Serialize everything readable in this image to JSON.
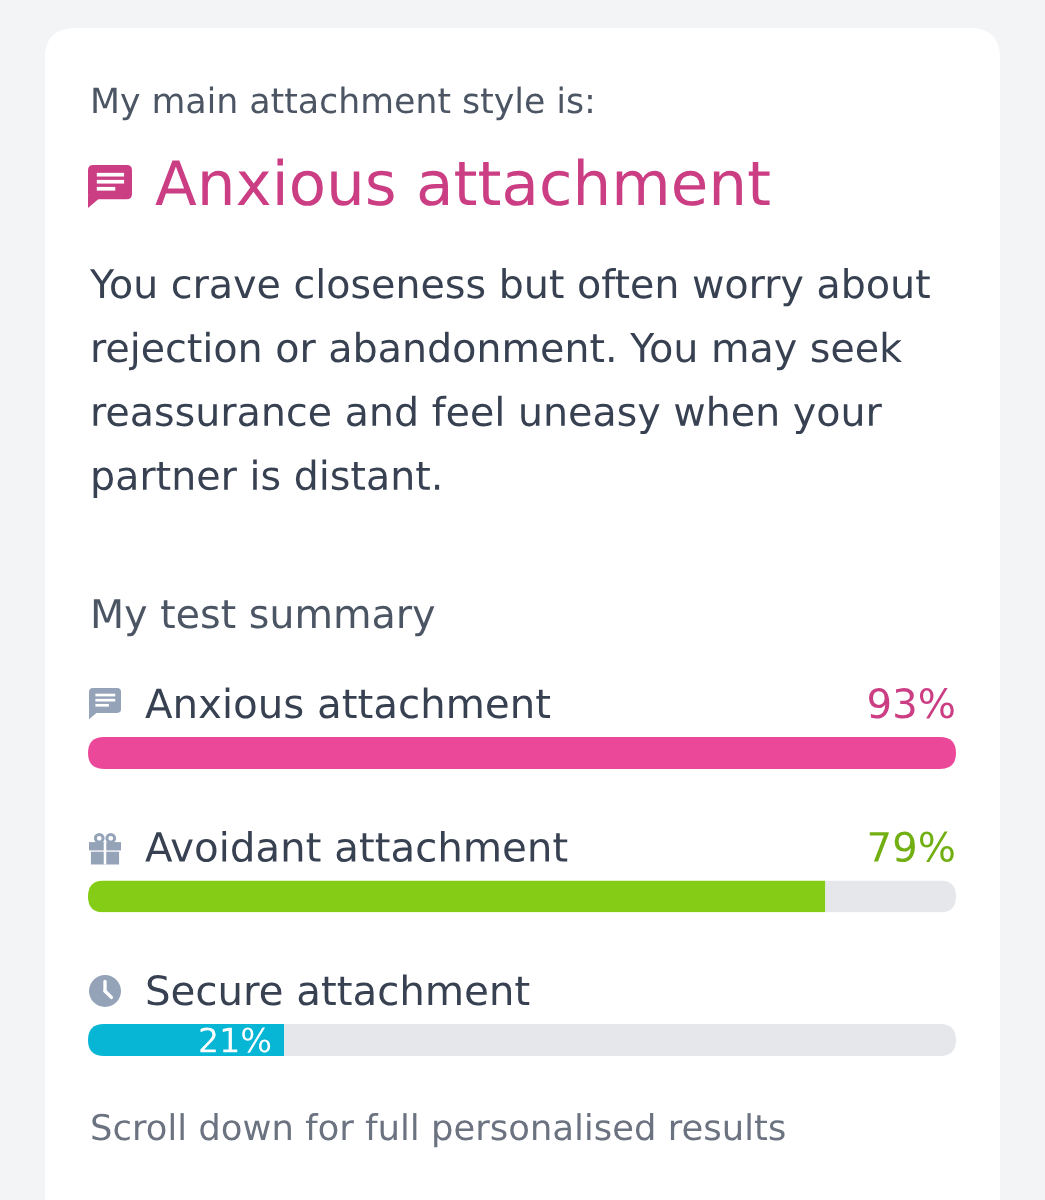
{
  "chart_data": {
    "type": "bar",
    "orientation": "horizontal",
    "stacked": true,
    "title": "My test summary",
    "annotations": [
      "My main attachment style is:",
      "Anxious attachment",
      "You crave closeness but often worry about rejection or abandonment. You may seek reassurance and feel uneasy when your partner is distant.",
      "Scroll down for full personalised results"
    ],
    "categories": [
      "Anxious attachment",
      "Avoidant attachment",
      "Secure attachment"
    ],
    "series": [
      {
        "colors": [
          "#ec4899",
          "#84cc16",
          "#06b6d4"
        ],
        "values": [
          93,
          79,
          21
        ],
        "value_labels": [
          "93%",
          "79%",
          "21%"
        ]
      },
      {
        "color": "#e5e7eb",
        "values": [
          0,
          14,
          72
        ]
      }
    ],
    "xlim": [
      0,
      93
    ],
    "tick_labels": "y"
  }
}
